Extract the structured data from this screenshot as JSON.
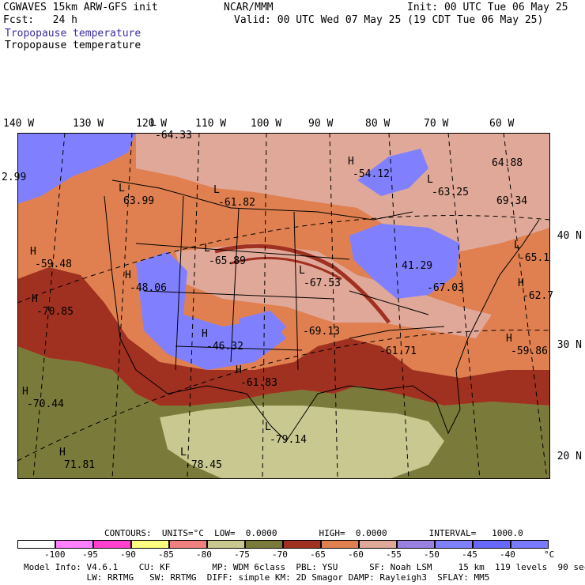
{
  "header": {
    "model_title": "CGWAVES 15km ARW-GFS init",
    "source": "NCAR/MMM",
    "init_time": "Init: 00 UTC Tue 06 May 25",
    "forecast": "Fcst:   24 h",
    "valid_time": "Valid: 00 UTC Wed 07 May 25 (19 CDT Tue 06 May 25)",
    "field_title_1": "Tropopause temperature",
    "field_title_2": "Tropopause temperature"
  },
  "longitude_labels": [
    "140 W",
    "130 W",
    "120 W",
    "110 W",
    "100 W",
    "90 W",
    "80 W",
    "70 W",
    "60 W"
  ],
  "latitude_labels": [
    "40 N",
    "30 N",
    "20 N"
  ],
  "map_labels": [
    {
      "kind": "L",
      "value": "-64.33"
    },
    {
      "kind": "",
      "value": "2.99"
    },
    {
      "kind": "L",
      "value": "63.99"
    },
    {
      "kind": "L",
      "value": "-61.82"
    },
    {
      "kind": "H",
      "value": "-54.12"
    },
    {
      "kind": "L",
      "value": "-63.25"
    },
    {
      "kind": "",
      "value": "64.88"
    },
    {
      "kind": "",
      "value": "69.34"
    },
    {
      "kind": "L",
      "value": "-65.89"
    },
    {
      "kind": "L",
      "value": "-67.53"
    },
    {
      "kind": "",
      "value": "41.29"
    },
    {
      "kind": "L",
      "value": "-65.1"
    },
    {
      "kind": "H",
      "value": "-59.48"
    },
    {
      "kind": "H",
      "value": "-48.06"
    },
    {
      "kind": "",
      "value": "-67.03"
    },
    {
      "kind": "H",
      "value": "-62.7"
    },
    {
      "kind": "H",
      "value": "-70.85"
    },
    {
      "kind": "",
      "value": "-69.13"
    },
    {
      "kind": "H",
      "value": "-59.86"
    },
    {
      "kind": "H",
      "value": "-46.32"
    },
    {
      "kind": "",
      "value": "-61.71"
    },
    {
      "kind": "H",
      "value": "-61.83"
    },
    {
      "kind": "H",
      "value": "-70.44"
    },
    {
      "kind": "L",
      "value": "-79.14"
    },
    {
      "kind": "L",
      "value": "-78.45"
    },
    {
      "kind": "H",
      "value": "71.81"
    }
  ],
  "contours": {
    "line": "CONTOURS:  UNITS=°C  LOW=  0.0000        HIGH=  0.0000        INTERVAL=   1000.0"
  },
  "colorbar": {
    "colors": [
      "#ffffff",
      "#ff80ff",
      "#ff40d0",
      "#ffff80",
      "#f08080",
      "#c8c890",
      "#7a7a3a",
      "#a03020",
      "#e08050",
      "#e0a898",
      "#9a80e0",
      "#8080ff",
      "#6868ff",
      "#7a7aff"
    ],
    "labels": [
      "-100",
      "-95",
      "-90",
      "-85",
      "-80",
      "-75",
      "-70",
      "-65",
      "-60",
      "-55",
      "-50",
      "-45",
      "-40",
      "°C"
    ]
  },
  "model_info": {
    "line1": "Model Info: V4.6.1    CU: KF        MP: WDM 6class  PBL: YSU      SF: Noah LSM     15 km  119 levels  90 sec",
    "line2": "            LW: RRTMG   SW: RRTMG  DIFF: simple KM: 2D Smagor DAMP: Rayleigh3  SFLAY: MM5"
  }
}
